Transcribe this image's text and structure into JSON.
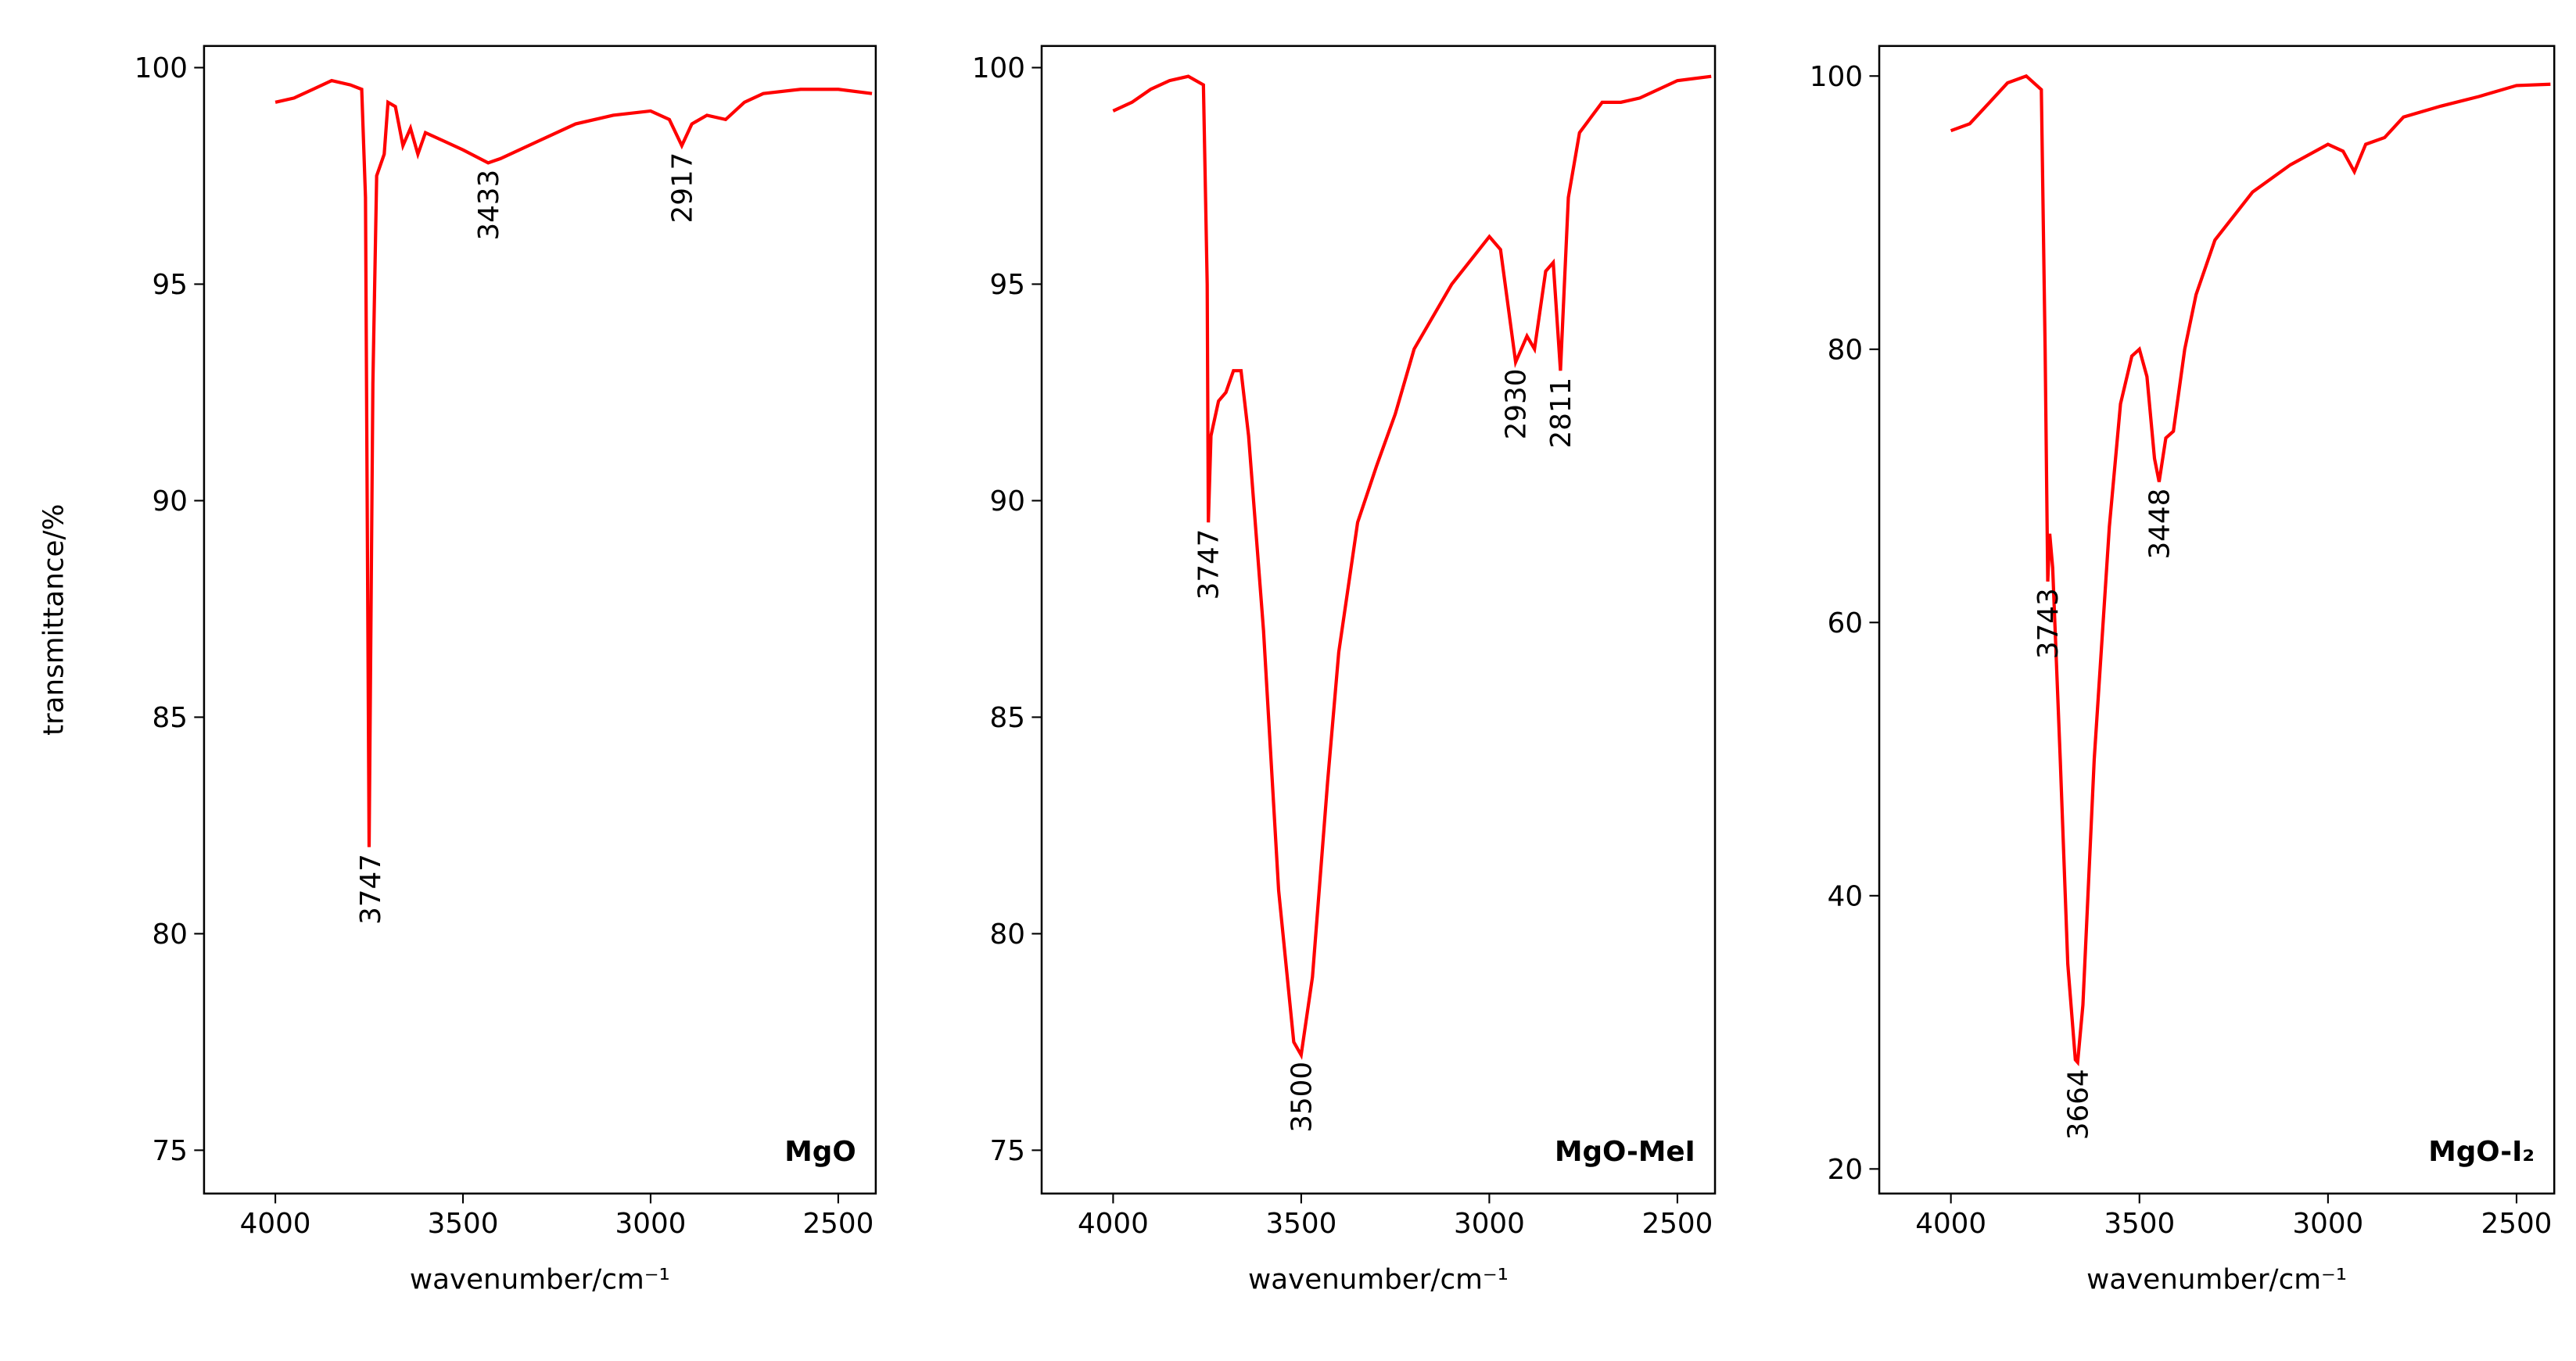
{
  "chart_data": [
    {
      "type": "line",
      "ylabel": "transmittance/%",
      "xlabel": "wavenumber/cm⁻¹",
      "panel_label": "MgO",
      "xlim": [
        4190,
        2400
      ],
      "ylim": [
        74,
        100.5
      ],
      "xticks": [
        4000,
        3500,
        3000,
        2500
      ],
      "yticks": [
        75,
        80,
        85,
        90,
        95,
        100
      ],
      "color": "#ff0000",
      "x": [
        4000,
        3950,
        3900,
        3850,
        3800,
        3770,
        3760,
        3750,
        3740,
        3730,
        3710,
        3700,
        3680,
        3660,
        3640,
        3620,
        3600,
        3550,
        3500,
        3433,
        3400,
        3300,
        3200,
        3100,
        3000,
        2950,
        2917,
        2890,
        2850,
        2800,
        2750,
        2700,
        2600,
        2500,
        2410
      ],
      "values": [
        99.2,
        99.3,
        99.5,
        99.7,
        99.6,
        99.5,
        97,
        82,
        92.7,
        97.5,
        98,
        99.2,
        99.1,
        98.2,
        98.6,
        98.0,
        98.5,
        98.3,
        98.1,
        97.8,
        97.9,
        98.3,
        98.7,
        98.9,
        99.0,
        98.8,
        98.2,
        98.7,
        98.9,
        98.8,
        99.2,
        99.4,
        99.5,
        99.5,
        99.4
      ],
      "annotations": [
        {
          "label": "3747",
          "x": 3747,
          "y": 82
        },
        {
          "label": "3433",
          "x": 3433,
          "y": 97.8
        },
        {
          "label": "2917",
          "x": 2917,
          "y": 98.2
        }
      ]
    },
    {
      "type": "line",
      "xlabel": "wavenumber/cm⁻¹",
      "panel_label": "MgO-MeI",
      "xlim": [
        4190,
        2400
      ],
      "ylim": [
        74,
        100.5
      ],
      "xticks": [
        4000,
        3500,
        3000,
        2500
      ],
      "yticks": [
        75,
        80,
        85,
        90,
        95,
        100
      ],
      "color": "#ff0000",
      "x": [
        4000,
        3950,
        3900,
        3850,
        3800,
        3760,
        3750,
        3747,
        3740,
        3720,
        3700,
        3680,
        3660,
        3640,
        3600,
        3560,
        3520,
        3500,
        3470,
        3430,
        3400,
        3350,
        3300,
        3250,
        3200,
        3100,
        3000,
        2970,
        2950,
        2930,
        2900,
        2880,
        2850,
        2830,
        2811,
        2790,
        2760,
        2700,
        2650,
        2600,
        2500,
        2410
      ],
      "values": [
        99.0,
        99.2,
        99.5,
        99.7,
        99.8,
        99.6,
        95,
        89.5,
        91.5,
        92.3,
        92.5,
        93.0,
        93.0,
        91.5,
        87,
        81,
        77.5,
        77.2,
        79,
        83.5,
        86.5,
        89.5,
        90.8,
        92,
        93.5,
        95,
        96.1,
        95.8,
        94.5,
        93.2,
        93.8,
        93.5,
        95.3,
        95.5,
        93.0,
        97,
        98.5,
        99.2,
        99.2,
        99.3,
        99.7,
        99.8
      ],
      "annotations": [
        {
          "label": "3747",
          "x": 3747,
          "y": 89.5
        },
        {
          "label": "3500",
          "x": 3500,
          "y": 77.2
        },
        {
          "label": "2930",
          "x": 2930,
          "y": 93.2
        },
        {
          "label": "2811",
          "x": 2811,
          "y": 93.0
        }
      ]
    },
    {
      "type": "line",
      "xlabel": "wavenumber/cm⁻¹",
      "panel_label": "MgO-I₂",
      "xlim": [
        4190,
        2400
      ],
      "ylim": [
        18.2,
        102.2
      ],
      "xticks": [
        4000,
        3500,
        3000,
        2500
      ],
      "yticks": [
        20,
        40,
        60,
        80,
        100
      ],
      "color": "#ff0000",
      "x": [
        4000,
        3950,
        3900,
        3850,
        3800,
        3760,
        3750,
        3743,
        3738,
        3730,
        3710,
        3690,
        3670,
        3664,
        3650,
        3620,
        3580,
        3550,
        3520,
        3500,
        3480,
        3460,
        3448,
        3430,
        3410,
        3380,
        3350,
        3300,
        3200,
        3100,
        3000,
        2960,
        2930,
        2900,
        2850,
        2800,
        2700,
        2600,
        2500,
        2410
      ],
      "values": [
        96.0,
        96.5,
        98,
        99.5,
        100,
        99,
        80,
        63,
        66.5,
        64,
        50,
        35,
        28,
        27.8,
        32,
        50,
        67,
        76,
        79.5,
        80,
        78,
        72,
        70.3,
        73.5,
        74,
        80,
        84,
        88,
        91.5,
        93.5,
        95,
        94.5,
        93,
        95,
        95.5,
        97,
        97.8,
        98.5,
        99.3,
        99.4
      ],
      "annotations": [
        {
          "label": "3743",
          "x": 3743,
          "y": 63
        },
        {
          "label": "3664",
          "x": 3664,
          "y": 27.8
        },
        {
          "label": "3448",
          "x": 3448,
          "y": 70.3
        }
      ]
    }
  ]
}
